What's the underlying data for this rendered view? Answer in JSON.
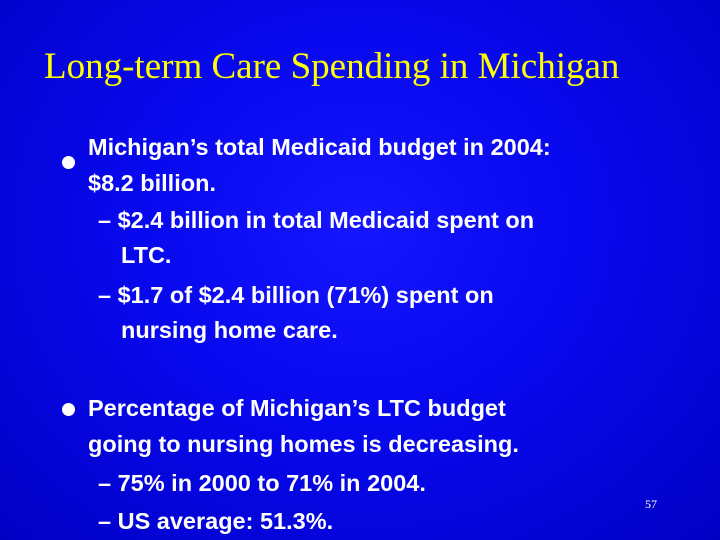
{
  "slide": {
    "title": "Long-term Care Spending in Michigan",
    "bullets": [
      {
        "lines": [
          "Michigan’s total Medicaid budget in 2004:",
          "$8.2 billion."
        ],
        "subs": [
          [
            "– $2.4 billion in total Medicaid spent on",
            "LTC."
          ],
          [
            "– $1.7 of $2.4 billion (71%) spent on",
            "nursing home care."
          ]
        ]
      },
      {
        "lines": [
          "Percentage of Michigan’s LTC budget",
          "going to nursing homes is decreasing."
        ],
        "subs": [
          [
            "– 75% in 2000 to 71% in 2004."
          ],
          [
            "– US average:  51.3%."
          ]
        ]
      }
    ],
    "page_number": "57"
  },
  "colors": {
    "background": "#0808ee",
    "title": "#ffff00",
    "body_text": "#ffffff"
  }
}
